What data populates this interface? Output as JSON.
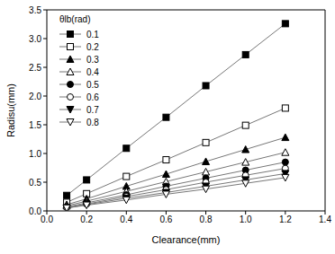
{
  "chart_data": {
    "type": "line",
    "x_label": "Clearance(mm)",
    "y_label": "Radisu(mm)",
    "legend_title": "θlb(rad)",
    "legend": "upper left",
    "x": [
      0.1,
      0.2,
      0.4,
      0.6,
      0.8,
      1.0,
      1.2
    ],
    "xlim": [
      0,
      1.4
    ],
    "xticks": [
      {
        "value": 0,
        "label": "0.0"
      },
      0.2,
      0.4,
      0.6,
      0.8,
      {
        "value": 1,
        "label": "1.0"
      },
      1.2,
      1.4
    ],
    "ylim": [
      0,
      3.5
    ],
    "yticks": [
      {
        "value": 0,
        "label": "0.0"
      },
      0.5,
      {
        "value": 1,
        "label": "1.0"
      },
      1.5,
      {
        "value": 2,
        "label": "2.0"
      },
      2.5,
      {
        "value": 3,
        "label": "3.0"
      },
      3.5
    ],
    "grid": false,
    "series": [
      {
        "name": "0.1",
        "color": "#000000",
        "marker": "square",
        "values": [
          0.27,
          0.54,
          1.09,
          1.63,
          2.18,
          2.72,
          3.26
        ]
      },
      {
        "name": "0.2",
        "color": "#000000",
        "marker": "square-open",
        "values": [
          0.15,
          0.3,
          0.6,
          0.89,
          1.19,
          1.49,
          1.79
        ]
      },
      {
        "name": "0.3",
        "color": "#000000",
        "marker": "triangle",
        "values": [
          0.11,
          0.21,
          0.43,
          0.64,
          0.86,
          1.07,
          1.28
        ]
      },
      {
        "name": "0.4",
        "color": "#000000",
        "marker": "triangle-open",
        "values": [
          0.09,
          0.17,
          0.34,
          0.51,
          0.68,
          0.85,
          1.02
        ]
      },
      {
        "name": "0.5",
        "color": "#000000",
        "marker": "circle",
        "values": [
          0.07,
          0.14,
          0.28,
          0.43,
          0.57,
          0.71,
          0.85
        ]
      },
      {
        "name": "0.6",
        "color": "#000000",
        "marker": "circle-open",
        "values": [
          0.06,
          0.12,
          0.25,
          0.37,
          0.5,
          0.62,
          0.74
        ]
      },
      {
        "name": "0.7",
        "color": "#000000",
        "marker": "triangle-down",
        "values": [
          0.05,
          0.11,
          0.22,
          0.32,
          0.43,
          0.54,
          0.65
        ]
      },
      {
        "name": "0.8",
        "color": "#000000",
        "marker": "triangle-down-open",
        "values": [
          0.05,
          0.1,
          0.19,
          0.29,
          0.38,
          0.48,
          0.58
        ]
      }
    ]
  }
}
